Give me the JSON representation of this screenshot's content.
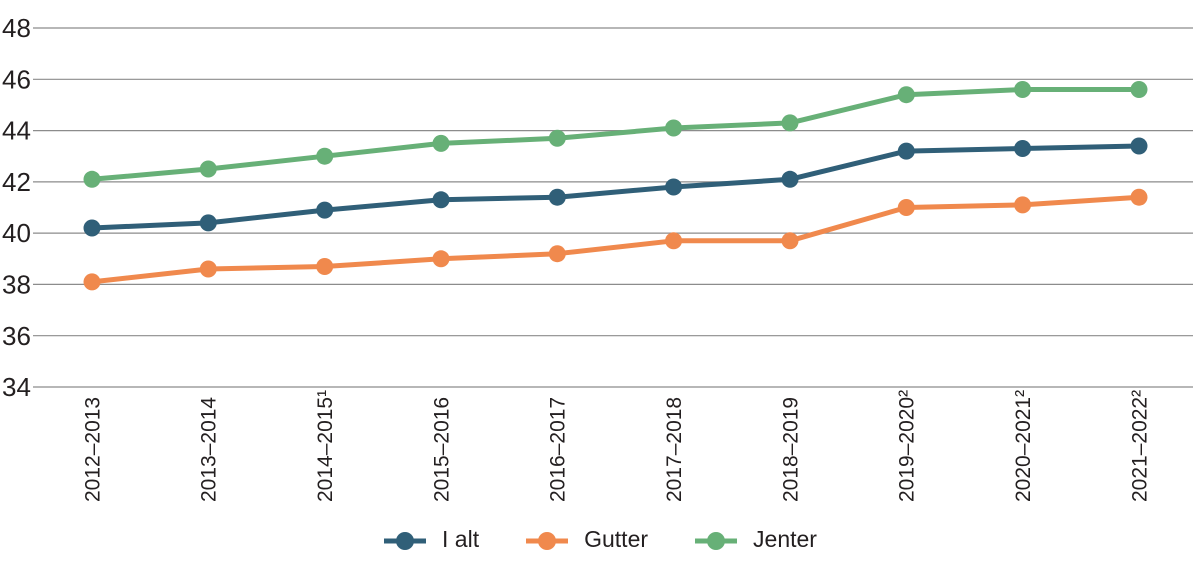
{
  "chart_data": {
    "type": "line",
    "title": "",
    "xlabel": "",
    "ylabel": "",
    "categories": [
      "2012–2013",
      "2013–2014",
      "2014–2015¹",
      "2015–2016",
      "2016–2017",
      "2017–2018",
      "2018–2019",
      "2019–2020²",
      "2020–2021²",
      "2021–2022²"
    ],
    "series": [
      {
        "name": "I alt",
        "color": "#305f78",
        "values": [
          40.2,
          40.4,
          40.9,
          41.3,
          41.4,
          41.8,
          42.1,
          43.2,
          43.3,
          43.4
        ]
      },
      {
        "name": "Gutter",
        "color": "#f0894d",
        "values": [
          38.1,
          38.6,
          38.7,
          39.0,
          39.2,
          39.7,
          39.7,
          41.0,
          41.1,
          41.4
        ]
      },
      {
        "name": "Jenter",
        "color": "#67b077",
        "values": [
          42.1,
          42.5,
          43.0,
          43.5,
          43.7,
          44.1,
          44.3,
          45.4,
          45.6,
          45.6
        ]
      }
    ],
    "ylim": [
      34,
      48
    ],
    "yticks": [
      48,
      46,
      44,
      42,
      40,
      38,
      36,
      34
    ],
    "grid": "horizontal",
    "gridline_color": "#8c8c8c",
    "text_color": "#231f20",
    "legend_position": "bottom",
    "marker": "circle"
  }
}
